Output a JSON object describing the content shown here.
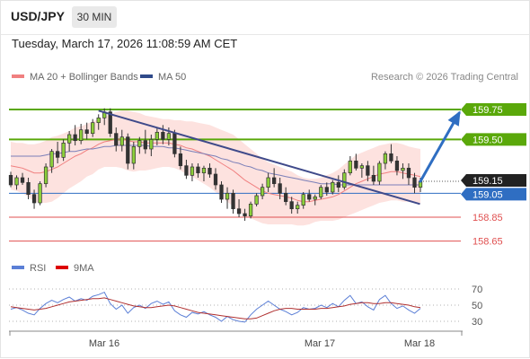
{
  "header": {
    "symbol": "USD/JPY",
    "timeframe": "30 MIN"
  },
  "datetime": "Tuesday, March 17, 2026 11:08:59 AM CET",
  "legend": {
    "ma20_label": "MA 20 + Bollinger Bands",
    "ma50_label": "MA 50",
    "ma20_color": "#f08080",
    "ma50_color": "#2f4a8a"
  },
  "copyright": "Research © 2026 Trading Central",
  "rsi_legend": {
    "rsi_label": "RSI",
    "ma_label": "9MA",
    "rsi_color": "#5b7fd6",
    "ma_color": "#dd0000"
  },
  "levels": {
    "resistance2": "159.75",
    "resistance1": "159.50",
    "last": "159.15",
    "pivot": "159.05",
    "support1": "158.85",
    "support2": "158.65"
  },
  "colors": {
    "green": "#5aa80a",
    "blue": "#2f6ec2",
    "red": "#e05050",
    "arrow": "#2f6ec2",
    "trendline": "#3f4a8a"
  },
  "rsi_ticks": [
    "70",
    "50",
    "30"
  ],
  "x_labels": [
    "Mar 16",
    "Mar 17",
    "Mar 18"
  ],
  "chart_data": {
    "type": "candlestick",
    "price_ylim": [
      158.55,
      159.9
    ],
    "rsi_ylim": [
      20,
      80
    ],
    "candles": [
      [
        159.2,
        159.23,
        159.1,
        159.12
      ],
      [
        159.12,
        159.2,
        159.08,
        159.18
      ],
      [
        159.18,
        159.22,
        159.12,
        159.14
      ],
      [
        159.14,
        159.18,
        159.0,
        159.04
      ],
      [
        159.04,
        159.08,
        158.92,
        158.97
      ],
      [
        158.97,
        159.15,
        158.95,
        159.13
      ],
      [
        159.13,
        159.3,
        159.1,
        159.27
      ],
      [
        159.27,
        159.42,
        159.22,
        159.4
      ],
      [
        159.4,
        159.48,
        159.3,
        159.35
      ],
      [
        159.35,
        159.5,
        159.32,
        159.47
      ],
      [
        159.47,
        159.57,
        159.4,
        159.54
      ],
      [
        159.54,
        159.62,
        159.45,
        159.49
      ],
      [
        159.49,
        159.63,
        159.46,
        159.58
      ],
      [
        159.58,
        159.64,
        159.5,
        159.55
      ],
      [
        159.55,
        159.67,
        159.52,
        159.64
      ],
      [
        159.64,
        159.71,
        159.58,
        159.68
      ],
      [
        159.68,
        159.76,
        159.62,
        159.73
      ],
      [
        159.73,
        159.76,
        159.52,
        159.55
      ],
      [
        159.55,
        159.6,
        159.4,
        159.45
      ],
      [
        159.45,
        159.58,
        159.4,
        159.52
      ],
      [
        159.52,
        159.55,
        159.25,
        159.3
      ],
      [
        159.3,
        159.48,
        159.25,
        159.44
      ],
      [
        159.44,
        159.52,
        159.38,
        159.49
      ],
      [
        159.49,
        159.58,
        159.38,
        159.42
      ],
      [
        159.42,
        159.54,
        159.36,
        159.5
      ],
      [
        159.5,
        159.6,
        159.45,
        159.56
      ],
      [
        159.56,
        159.62,
        159.46,
        159.5
      ],
      [
        159.5,
        159.6,
        159.45,
        159.55
      ],
      [
        159.55,
        159.58,
        159.35,
        159.38
      ],
      [
        159.38,
        159.44,
        159.25,
        159.28
      ],
      [
        159.28,
        159.33,
        159.17,
        159.2
      ],
      [
        159.2,
        159.3,
        159.15,
        159.27
      ],
      [
        159.27,
        159.3,
        159.18,
        159.22
      ],
      [
        159.22,
        159.28,
        159.15,
        159.26
      ],
      [
        159.26,
        159.3,
        159.18,
        159.21
      ],
      [
        159.21,
        159.26,
        159.08,
        159.12
      ],
      [
        159.12,
        159.15,
        158.97,
        159.0
      ],
      [
        159.0,
        159.1,
        158.92,
        159.05
      ],
      [
        159.05,
        159.08,
        158.88,
        158.92
      ],
      [
        158.92,
        159.0,
        158.85,
        158.88
      ],
      [
        158.88,
        158.92,
        158.82,
        158.86
      ],
      [
        158.86,
        158.98,
        158.84,
        158.96
      ],
      [
        158.96,
        159.05,
        158.94,
        159.03
      ],
      [
        159.03,
        159.13,
        159.0,
        159.1
      ],
      [
        159.1,
        159.22,
        159.06,
        159.18
      ],
      [
        159.18,
        159.26,
        159.1,
        159.13
      ],
      [
        159.13,
        159.18,
        159.0,
        159.05
      ],
      [
        159.05,
        159.1,
        158.95,
        158.98
      ],
      [
        158.98,
        159.02,
        158.88,
        158.92
      ],
      [
        158.92,
        158.98,
        158.88,
        158.95
      ],
      [
        158.95,
        159.06,
        158.92,
        159.04
      ],
      [
        159.04,
        159.08,
        158.98,
        159.0
      ],
      [
        159.0,
        159.04,
        158.95,
        159.02
      ],
      [
        159.02,
        159.12,
        159.0,
        159.1
      ],
      [
        159.1,
        159.14,
        159.03,
        159.06
      ],
      [
        159.06,
        159.16,
        159.04,
        159.14
      ],
      [
        159.14,
        159.2,
        159.06,
        159.1
      ],
      [
        159.1,
        159.25,
        159.08,
        159.22
      ],
      [
        159.22,
        159.36,
        159.2,
        159.32
      ],
      [
        159.32,
        159.38,
        159.24,
        159.26
      ],
      [
        159.26,
        159.3,
        159.18,
        159.28
      ],
      [
        159.28,
        159.32,
        159.15,
        159.2
      ],
      [
        159.2,
        159.28,
        159.12,
        159.15
      ],
      [
        159.15,
        159.32,
        159.12,
        159.3
      ],
      [
        159.3,
        159.4,
        159.25,
        159.38
      ],
      [
        159.38,
        159.46,
        159.3,
        159.32
      ],
      [
        159.32,
        159.36,
        159.2,
        159.24
      ],
      [
        159.24,
        159.3,
        159.17,
        159.26
      ],
      [
        159.26,
        159.3,
        159.12,
        159.18
      ],
      [
        159.18,
        159.22,
        159.05,
        159.1
      ],
      [
        159.1,
        159.18,
        159.06,
        159.15
      ]
    ],
    "ma20": [
      159.28,
      159.27,
      159.26,
      159.24,
      159.22,
      159.22,
      159.23,
      159.25,
      159.27,
      159.3,
      159.33,
      159.36,
      159.38,
      159.41,
      159.43,
      159.46,
      159.48,
      159.49,
      159.5,
      159.5,
      159.49,
      159.48,
      159.48,
      159.47,
      159.47,
      159.47,
      159.47,
      159.47,
      159.46,
      159.45,
      159.43,
      159.42,
      159.4,
      159.38,
      159.36,
      159.33,
      159.3,
      159.27,
      159.24,
      159.2,
      159.16,
      159.13,
      159.1,
      159.07,
      159.05,
      159.04,
      159.03,
      159.02,
      159.01,
      158.99,
      158.98,
      158.98,
      158.99,
      159.0,
      159.01,
      159.02,
      159.04,
      159.07,
      159.1,
      159.13,
      159.15,
      159.17,
      159.19,
      159.21,
      159.22,
      159.23,
      159.23,
      159.22,
      159.21,
      159.2,
      159.19
    ],
    "ma50": [
      159.36,
      159.36,
      159.36,
      159.36,
      159.36,
      159.36,
      159.37,
      159.38,
      159.38,
      159.39,
      159.4,
      159.4,
      159.41,
      159.42,
      159.42,
      159.43,
      159.44,
      159.44,
      159.45,
      159.45,
      159.45,
      159.45,
      159.45,
      159.45,
      159.44,
      159.44,
      159.44,
      159.43,
      159.43,
      159.42,
      159.41,
      159.4,
      159.39,
      159.38,
      159.37,
      159.36,
      159.34,
      159.33,
      159.31,
      159.3,
      159.28,
      159.27,
      159.25,
      159.24,
      159.22,
      159.21,
      159.2,
      159.19,
      159.18,
      159.17,
      159.16,
      159.15,
      159.14,
      159.13,
      159.13,
      159.13,
      159.12,
      159.12,
      159.12,
      159.12,
      159.12,
      159.12,
      159.12,
      159.12,
      159.12,
      159.12,
      159.12,
      159.12,
      159.12,
      159.12,
      159.12
    ],
    "bb_width": [
      0.2,
      0.2,
      0.21,
      0.22,
      0.24,
      0.25,
      0.26,
      0.27,
      0.26,
      0.25,
      0.24,
      0.24,
      0.23,
      0.22,
      0.22,
      0.21,
      0.21,
      0.22,
      0.23,
      0.24,
      0.25,
      0.25,
      0.24,
      0.23,
      0.22,
      0.21,
      0.2,
      0.2,
      0.2,
      0.21,
      0.22,
      0.23,
      0.24,
      0.25,
      0.26,
      0.27,
      0.28,
      0.29,
      0.3,
      0.3,
      0.3,
      0.29,
      0.28,
      0.27,
      0.26,
      0.25,
      0.24,
      0.23,
      0.22,
      0.21,
      0.2,
      0.19,
      0.18,
      0.18,
      0.19,
      0.2,
      0.21,
      0.22,
      0.23,
      0.24,
      0.24,
      0.24,
      0.24,
      0.24,
      0.24,
      0.24,
      0.24,
      0.24,
      0.23,
      0.23,
      0.23
    ],
    "rsi": [
      45,
      47,
      44,
      40,
      38,
      46,
      52,
      56,
      53,
      57,
      60,
      55,
      58,
      56,
      61,
      63,
      66,
      52,
      45,
      50,
      40,
      47,
      50,
      46,
      52,
      55,
      51,
      54,
      43,
      38,
      35,
      41,
      39,
      42,
      38,
      35,
      30,
      36,
      32,
      30,
      29,
      38,
      45,
      50,
      55,
      50,
      45,
      42,
      38,
      41,
      47,
      45,
      46,
      50,
      47,
      52,
      48,
      56,
      62,
      52,
      54,
      48,
      44,
      57,
      62,
      52,
      46,
      49,
      44,
      40,
      46
    ],
    "rsi_ma": [
      48,
      47,
      46,
      45,
      44,
      45,
      46,
      48,
      50,
      52,
      54,
      55,
      56,
      57,
      58,
      58,
      59,
      57,
      55,
      53,
      51,
      49,
      48,
      47,
      47,
      48,
      49,
      50,
      49,
      47,
      45,
      43,
      41,
      40,
      39,
      38,
      37,
      36,
      35,
      34,
      33,
      33,
      34,
      37,
      40,
      43,
      45,
      46,
      46,
      45,
      45,
      45,
      45,
      46,
      46,
      47,
      48,
      49,
      51,
      52,
      53,
      53,
      52,
      52,
      53,
      53,
      52,
      51,
      50,
      48,
      47
    ]
  },
  "trendline": {
    "start": [
      15,
      159.74
    ],
    "end": [
      69,
      158.96
    ]
  },
  "arrow": {
    "start": [
      70,
      159.15
    ],
    "end": [
      76,
      159.75
    ]
  }
}
